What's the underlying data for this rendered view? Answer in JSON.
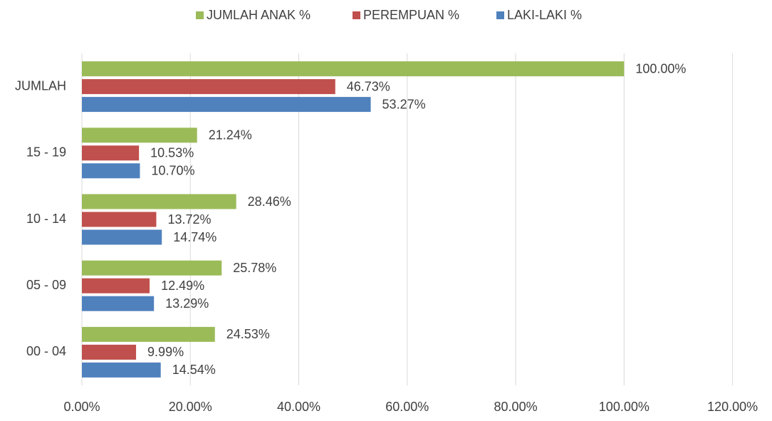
{
  "chart_data": {
    "type": "hbar",
    "categories": [
      "00 - 04",
      "05 - 09",
      "10 - 14",
      "15 - 19",
      "JUMLAH"
    ],
    "series": [
      {
        "name": "JUMLAH ANAK %",
        "color": "#9bbb59",
        "values": [
          24.53,
          25.78,
          28.46,
          21.24,
          100
        ],
        "value_labels": [
          "24.53%",
          "25.78%",
          "28.46%",
          "21.24%",
          "100.00%"
        ]
      },
      {
        "name": "PEREMPUAN %",
        "color": "#c0504d",
        "values": [
          9.99,
          12.49,
          13.72,
          10.53,
          46.73
        ],
        "value_labels": [
          "9.99%",
          "12.49%",
          "13.72%",
          "10.53%",
          "46.73%"
        ]
      },
      {
        "name": "LAKI-LAKI %",
        "color": "#4f81bd",
        "values": [
          14.54,
          13.29,
          14.74,
          10.7,
          53.27
        ],
        "value_labels": [
          "14.54%",
          "13.29%",
          "14.74%",
          "10.70%",
          "53.27%"
        ]
      }
    ],
    "xlim": [
      0,
      120
    ],
    "xticks": [
      {
        "value": 0,
        "label": "0.00%"
      },
      {
        "value": 20,
        "label": "20.00%"
      },
      {
        "value": 40,
        "label": "40.00%"
      },
      {
        "value": 60,
        "label": "60.00%"
      },
      {
        "value": 80,
        "label": "80.00%"
      },
      {
        "value": 100,
        "label": "100.00%"
      },
      {
        "value": 120,
        "label": "120.00%"
      }
    ],
    "grid": true,
    "legend": "top"
  }
}
